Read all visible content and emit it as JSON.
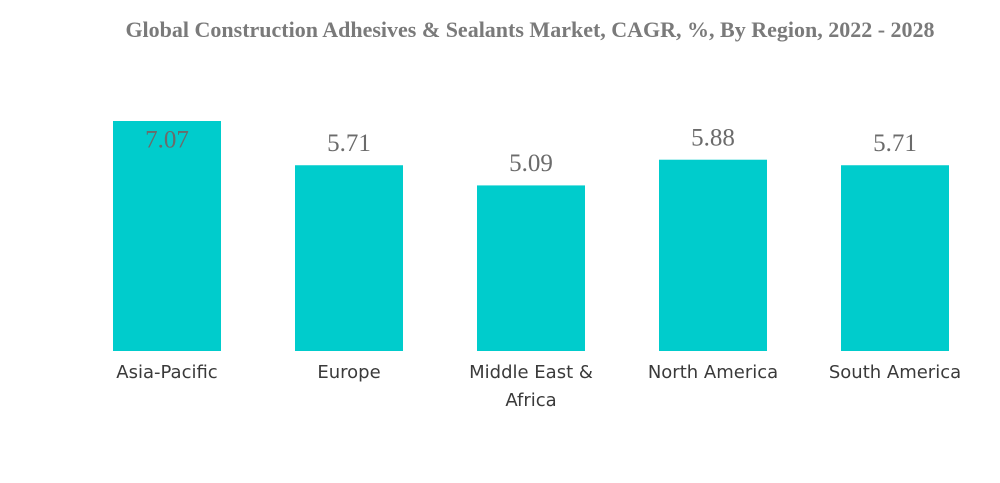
{
  "chart_data": {
    "type": "bar",
    "title": "Global Construction Adhesives & Sealants Market, CAGR, %, By Region, 2022 - 2028",
    "categories": [
      "Asia-Pacific",
      "Europe",
      "Middle East & Africa",
      "North America",
      "South America"
    ],
    "values": [
      7.07,
      5.71,
      5.09,
      5.88,
      5.71
    ],
    "color": "#00cccc"
  }
}
